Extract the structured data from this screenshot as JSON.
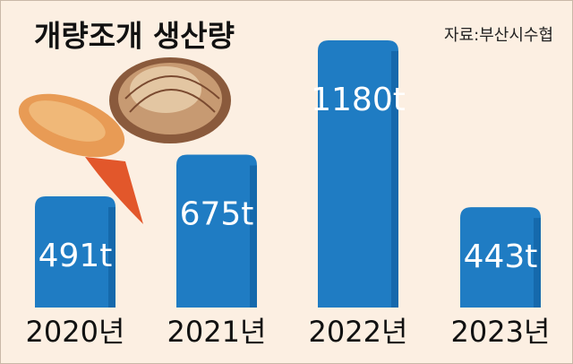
{
  "chart_data": {
    "type": "bar",
    "title": "개량조개 생산량",
    "source": "자료:부산시수협",
    "categories": [
      "2020년",
      "2021년",
      "2022년",
      "2023년"
    ],
    "values": [
      491,
      675,
      1180,
      443
    ],
    "value_labels": [
      "491t",
      "675t",
      "1180t",
      "443t"
    ],
    "color": "#1f7cc3"
  }
}
